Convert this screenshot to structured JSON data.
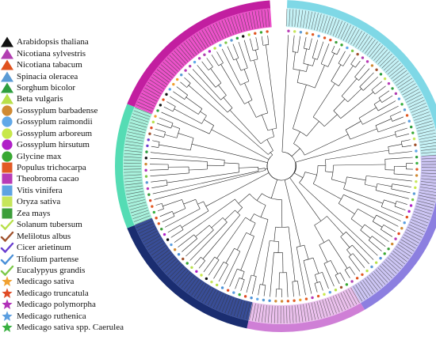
{
  "legend": {
    "items": [
      {
        "label": "Arabidopsis thaliana",
        "shape": "triangle",
        "color": "#111111"
      },
      {
        "label": "Nicotiana sylvestris",
        "shape": "triangle",
        "color": "#b23fb1"
      },
      {
        "label": "Nicotiana tabacum",
        "shape": "triangle",
        "color": "#e0521e"
      },
      {
        "label": "Spinacia oleracea",
        "shape": "triangle",
        "color": "#5b9bd5"
      },
      {
        "label": "Sorghum bicolor",
        "shape": "triangle",
        "color": "#2e9e3e"
      },
      {
        "label": "Beta vulgaris",
        "shape": "triangle",
        "color": "#b8e04a"
      },
      {
        "label": "Gossyplum barbadense",
        "shape": "circle",
        "color": "#d08a33"
      },
      {
        "label": "Gossyplum raimondii",
        "shape": "circle",
        "color": "#61a8e8"
      },
      {
        "label": "Gossyplum arboreum",
        "shape": "circle",
        "color": "#c8e84a"
      },
      {
        "label": "Gossyplum hirsutum",
        "shape": "circle",
        "color": "#b020c8"
      },
      {
        "label": "Glycine max",
        "shape": "circle",
        "color": "#38a832"
      },
      {
        "label": "Populus trichocarpa",
        "shape": "square",
        "color": "#e25a24"
      },
      {
        "label": "Theobroma cacao",
        "shape": "square",
        "color": "#b83ab6"
      },
      {
        "label": "Vitis vinifera",
        "shape": "square",
        "color": "#5ea3e2"
      },
      {
        "label": "Oryza sativa",
        "shape": "square",
        "color": "#c6e65a"
      },
      {
        "label": "Zea mays",
        "shape": "square",
        "color": "#3c9e3a"
      },
      {
        "label": "Solanum tubersum",
        "shape": "check",
        "color": "#b8e04a"
      },
      {
        "label": "Melilotus albus",
        "shape": "check",
        "color": "#a0522d"
      },
      {
        "label": "Cicer arietinum",
        "shape": "check",
        "color": "#6a3fd0"
      },
      {
        "label": "Tifolium partense",
        "shape": "check",
        "color": "#4a90d8"
      },
      {
        "label": "Eucalypyus grandis",
        "shape": "check",
        "color": "#7cc84a"
      },
      {
        "label": "Medicago sativa",
        "shape": "star",
        "color": "#f0a030"
      },
      {
        "label": "Medicago truncatula",
        "shape": "star",
        "color": "#e04a24"
      },
      {
        "label": "Medicago polymorpha",
        "shape": "star",
        "color": "#b030b8"
      },
      {
        "label": "Medicago ruthenica",
        "shape": "star",
        "color": "#5a9ee0"
      },
      {
        "label": "Medicago sativa spp. Caerulea",
        "shape": "star",
        "color": "#38b040"
      }
    ]
  },
  "clades": [
    {
      "color": "#bfeff4",
      "dark": "#7fd8e6",
      "start": 2,
      "end": 86
    },
    {
      "color": "#c6bff2",
      "dark": "#8c7fe0",
      "start": 86,
      "end": 150
    },
    {
      "color": "#e8b9ea",
      "dark": "#cf7fd6",
      "start": 150,
      "end": 192
    },
    {
      "color": "#223a8c",
      "dark": "#1a2d70",
      "start": 192,
      "end": 248
    },
    {
      "color": "#9ff0d8",
      "dark": "#55dcb4",
      "start": 248,
      "end": 292
    },
    {
      "color": "#e93fc3",
      "dark": "#c21ea0",
      "start": 292,
      "end": 356
    }
  ]
}
